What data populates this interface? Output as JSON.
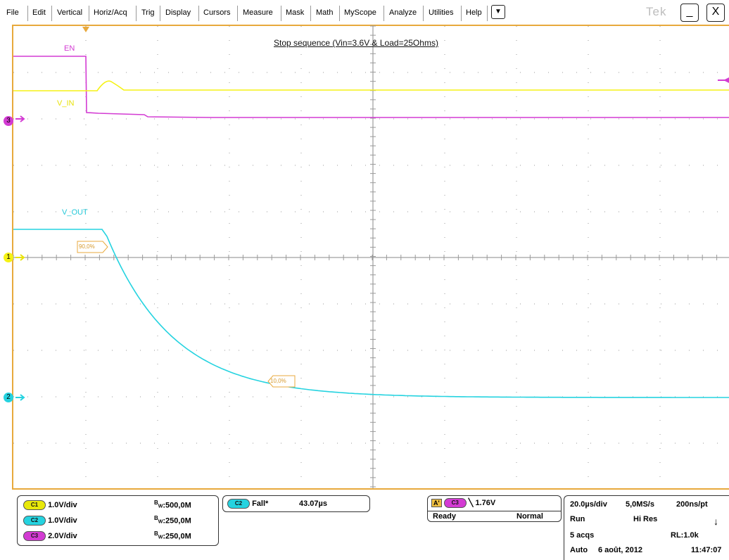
{
  "menu": {
    "items": [
      "File",
      "Edit",
      "Vertical",
      "Horiz/Acq",
      "Trig",
      "Display",
      "Cursors",
      "Measure",
      "Mask",
      "Math",
      "MyScope",
      "Analyze",
      "Utilities",
      "Help"
    ],
    "more_icon": "dropdown-arrow",
    "logo": "Tek",
    "minimize_label": "_",
    "close_label": "X"
  },
  "screen": {
    "title": "Stop sequence (Vin=3.6V & Load=25Ohms)",
    "labels": {
      "en": "EN",
      "vin": "V_IN",
      "vout": "V_OUT"
    },
    "markers": {
      "pct90": "90,0%",
      "pct10": "10,0%"
    },
    "channel_markers": [
      "3",
      "1",
      "2"
    ],
    "colors": {
      "ch1": "#f5f215",
      "ch2": "#25d3e0",
      "ch3": "#d33bd3",
      "frame": "#e8a93c"
    }
  },
  "channels": [
    {
      "name": "C1",
      "scale": "1.0V/div",
      "bw_prefix": "B",
      "bw_sub": "W",
      "bw": ":500,0M",
      "color": "#e8e80a"
    },
    {
      "name": "C2",
      "scale": "1.0V/div",
      "bw_prefix": "B",
      "bw_sub": "W",
      "bw": ":250,0M",
      "color": "#25d3e0"
    },
    {
      "name": "C3",
      "scale": "2.0V/div",
      "bw_prefix": "B",
      "bw_sub": "W",
      "bw": ":250,0M",
      "color": "#d33bd3"
    }
  ],
  "measurement": {
    "channel": "C2",
    "name": "Fall*",
    "value": "43.07µs"
  },
  "trigger": {
    "a_label": "A'",
    "channel": "C3",
    "level": "1.76V",
    "state": "Ready",
    "mode": "Normal"
  },
  "acquisition": {
    "timebase": "20.0µs/div",
    "rate": "5,0MS/s",
    "resolution": "200ns/pt",
    "run": "Run",
    "mode": "Hi Res",
    "acqs": "5 acqs",
    "rl": "RL:1.0k",
    "auto": "Auto",
    "date": "6 août, 2012",
    "time": "11:47:07"
  }
}
